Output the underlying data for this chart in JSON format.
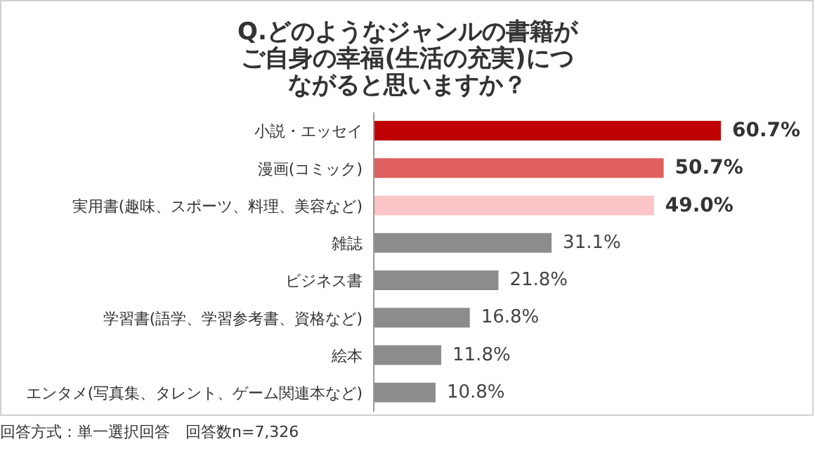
{
  "chart_data": {
    "type": "bar",
    "orientation": "horizontal",
    "title": "Q.どのようなジャンルの書籍がご自身の幸福(生活の充実)につながると思いますか？",
    "categories": [
      "小説・エッセイ",
      "漫画(コミック)",
      "実用書(趣味、スポーツ、料理、美容など)",
      "雑誌",
      "ビジネス書",
      "学習書(語学、学習参考書、資格など)",
      "絵本",
      "エンタメ(写真集、タレント、ゲーム関連本など)"
    ],
    "values": [
      60.7,
      50.7,
      49.0,
      31.1,
      21.8,
      16.8,
      11.8,
      10.8
    ],
    "colors": [
      "#bf0000",
      "#e0605f",
      "#fcc5c8",
      "#8c8c8c",
      "#8c8c8c",
      "#8c8c8c",
      "#8c8c8c",
      "#8c8c8c"
    ],
    "value_labels": [
      "60.7%",
      "50.7%",
      "49.0%",
      "31.1%",
      "21.8%",
      "16.8%",
      "11.8%",
      "10.8%"
    ],
    "annotations": [
      "回答方式：単一選択回答　回答数n=7,326"
    ]
  }
}
